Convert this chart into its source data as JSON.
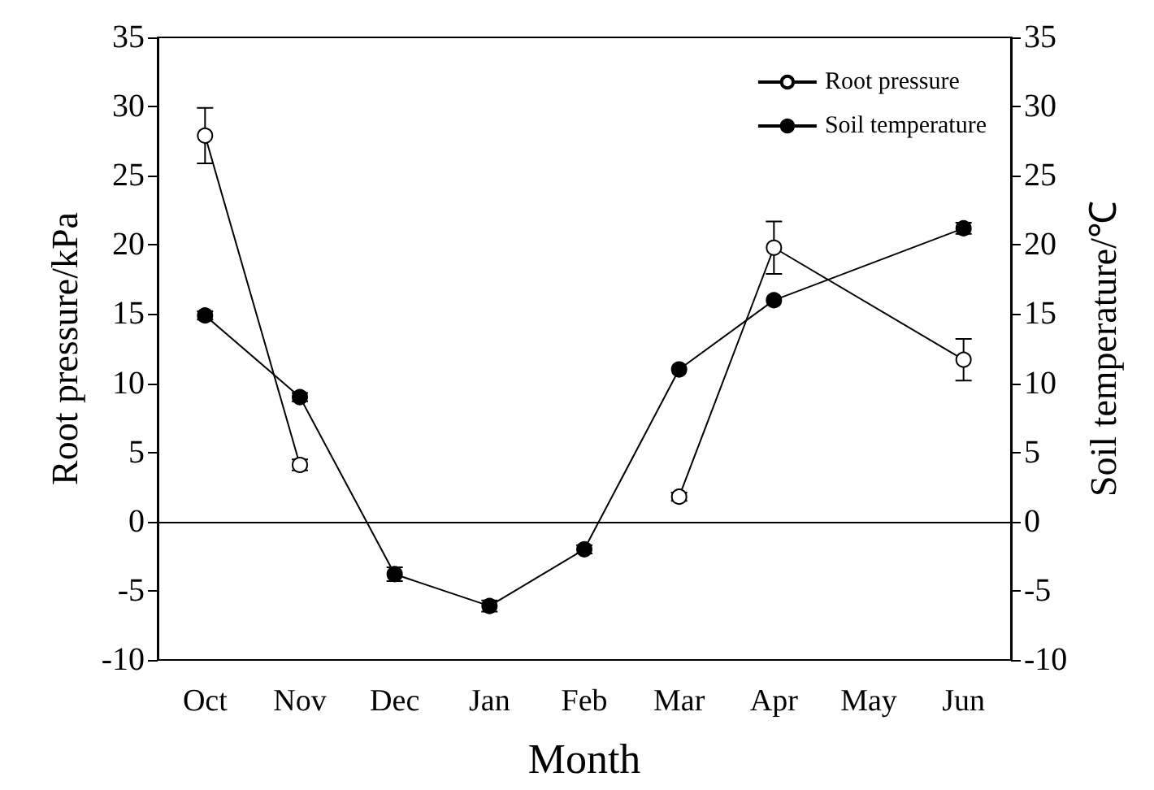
{
  "chart_data": {
    "type": "line",
    "xlabel": "Month",
    "ylabel": "Root pressure/kPa",
    "y2label": "Soil temperature/℃",
    "categories": [
      "Oct",
      "Nov",
      "Dec",
      "Jan",
      "Feb",
      "Mar",
      "Apr",
      "May",
      "Jun"
    ],
    "series": [
      {
        "name": "Root pressure",
        "color": "#000000",
        "marker": "circle",
        "x": [
          "Oct",
          "Nov",
          "Dec",
          "Jan",
          "Feb",
          "Mar",
          "Apr",
          "Jun"
        ],
        "values": [
          27.9,
          4.1,
          null,
          null,
          null,
          1.8,
          19.8,
          11.7
        ],
        "errors": [
          2.0,
          0.4,
          null,
          null,
          null,
          0.3,
          1.9,
          1.5
        ]
      },
      {
        "name": "Soil temperature",
        "color": "#000000",
        "marker": "circle",
        "axis": "y2",
        "x": [
          "Oct",
          "Nov",
          "Dec",
          "Jan",
          "Feb",
          "Mar",
          "Apr",
          "Jun"
        ],
        "values": [
          14.9,
          9.0,
          -3.8,
          -6.1,
          -2.0,
          11.0,
          16.0,
          21.2
        ],
        "errors": [
          0.3,
          0.3,
          0.5,
          0.4,
          0.3,
          null,
          null,
          0.4
        ]
      }
    ],
    "ylim": [
      -10,
      35
    ],
    "yticks": [
      -10,
      -5,
      0,
      5,
      10,
      15,
      20,
      25,
      30,
      35
    ],
    "y2lim": [
      -10,
      35
    ],
    "y2ticks": [
      -10,
      -5,
      0,
      5,
      10,
      15,
      20,
      25,
      30,
      35
    ],
    "ref_lines": [
      {
        "axis": "y",
        "value": 0,
        "color": "#000000"
      }
    ],
    "legend": "top right",
    "line_style": "solid"
  }
}
